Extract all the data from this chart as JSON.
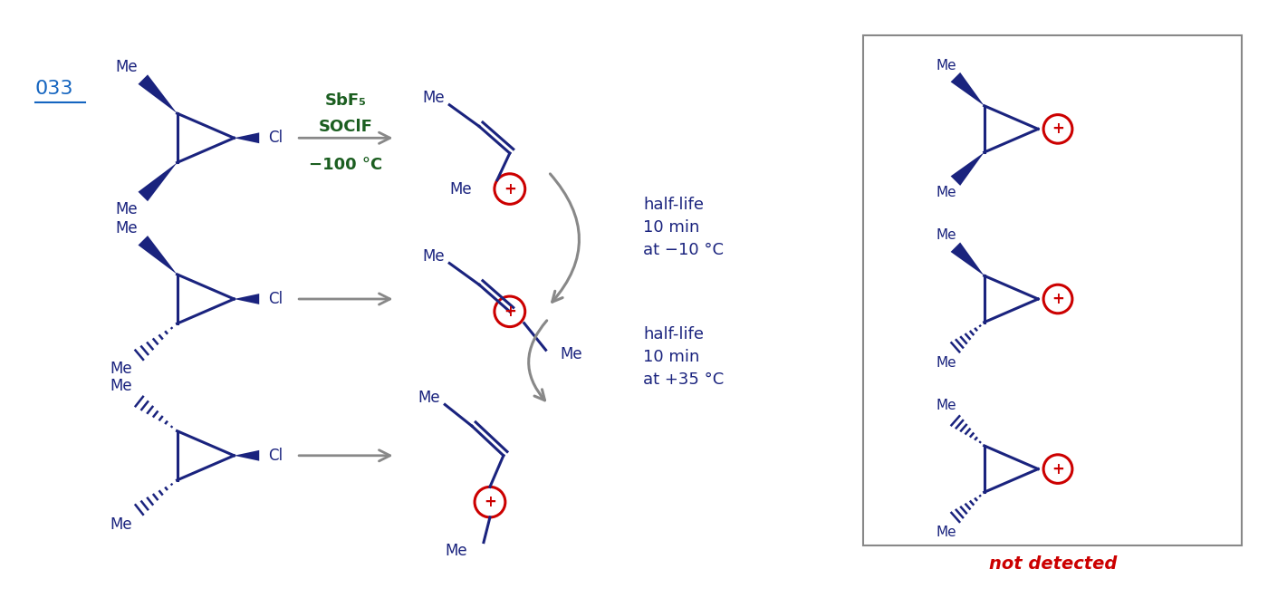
{
  "bg_color": "#ffffff",
  "dark_blue": "#1a237e",
  "dark_green": "#1b5e20",
  "gray": "#888888",
  "red": "#cc0000",
  "link_color": "#1565c0",
  "label_033": "033",
  "sbf5": "SbF₅",
  "soclf": "SOClF",
  "temp": "−100 °C",
  "half_life_1": "half-life\n10 min\nat −10 °C",
  "half_life_2": "half-life\n10 min\nat +35 °C",
  "not_detected": "not detected"
}
